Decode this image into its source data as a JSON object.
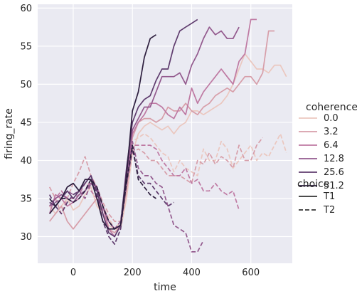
{
  "chart_data": {
    "type": "line",
    "title": "",
    "xlabel": "time",
    "ylabel": "firing_rate",
    "xlim": [
      -120,
      740
    ],
    "ylim": [
      26.5,
      60.5
    ],
    "xticks": [
      0,
      200,
      400,
      600
    ],
    "yticks": [
      30,
      35,
      40,
      45,
      50,
      55,
      60
    ],
    "grid": true,
    "background": "#eaeaf2",
    "legend": {
      "placement": "right",
      "hue_title": "coherence",
      "hue_entries": [
        "0.0",
        "3.2",
        "6.4",
        "12.8",
        "25.6",
        "51.2"
      ],
      "style_title": "choice",
      "style_entries": [
        "T1",
        "T2"
      ]
    },
    "series": [
      {
        "coherence": "0.0",
        "choice": "T1",
        "color": "#ebc7bf",
        "x": [
          -80,
          -60,
          -40,
          -20,
          0,
          20,
          40,
          60,
          80,
          100,
          120,
          140,
          160,
          180,
          200,
          220,
          240,
          260,
          280,
          300,
          320,
          340,
          360,
          380,
          400,
          420,
          440,
          460,
          480,
          500,
          520,
          540,
          560,
          580,
          600,
          620,
          640,
          660,
          680,
          700,
          720
        ],
        "y": [
          34.0,
          33.0,
          34.0,
          35.0,
          33.5,
          34.0,
          35.5,
          36.5,
          34.0,
          33.0,
          31.5,
          31.0,
          31.0,
          35.0,
          41.0,
          43.5,
          44.5,
          45.0,
          44.5,
          44.0,
          44.5,
          43.5,
          44.5,
          45.0,
          46.5,
          46.5,
          46.0,
          46.5,
          47.0,
          47.5,
          48.5,
          50.0,
          52.0,
          54.0,
          53.0,
          52.0,
          52.0,
          51.5,
          52.5,
          52.5,
          51.0
        ]
      },
      {
        "coherence": "0.0",
        "choice": "T2",
        "color": "#ebc7bf",
        "x": [
          -80,
          -60,
          -40,
          -20,
          0,
          20,
          40,
          60,
          80,
          100,
          120,
          140,
          160,
          180,
          200,
          220,
          240,
          260,
          280,
          300,
          320,
          340,
          360,
          380,
          400,
          420,
          440,
          460,
          480,
          500,
          520,
          540,
          560,
          580,
          600,
          620,
          640,
          660,
          680,
          700,
          720
        ],
        "y": [
          34.0,
          35.0,
          35.0,
          36.0,
          35.0,
          36.0,
          37.0,
          37.0,
          36.0,
          34.0,
          32.5,
          31.0,
          32.0,
          37.0,
          42.5,
          43.0,
          43.5,
          43.0,
          42.0,
          41.0,
          40.5,
          38.5,
          40.0,
          39.0,
          38.5,
          38.0,
          41.5,
          40.0,
          40.0,
          42.5,
          41.5,
          39.0,
          40.0,
          41.0,
          42.0,
          40.0,
          41.0,
          40.5,
          42.0,
          43.5,
          41.0
        ]
      },
      {
        "coherence": "3.2",
        "choice": "T1",
        "color": "#d79ea9",
        "x": [
          -80,
          -60,
          -40,
          -20,
          0,
          20,
          40,
          60,
          80,
          100,
          120,
          140,
          160,
          180,
          200,
          220,
          240,
          260,
          280,
          300,
          320,
          340,
          360,
          380,
          400,
          420,
          440,
          460,
          480,
          500,
          520,
          540,
          560,
          580,
          600,
          620,
          640,
          660,
          680
        ],
        "y": [
          32.0,
          33.0,
          34.0,
          32.0,
          31.0,
          32.0,
          33.0,
          34.0,
          35.0,
          33.0,
          31.0,
          30.5,
          31.5,
          36.0,
          43.0,
          45.0,
          45.5,
          45.5,
          45.0,
          45.5,
          47.0,
          46.5,
          46.5,
          47.5,
          46.5,
          46.0,
          47.0,
          47.5,
          48.5,
          49.0,
          49.5,
          49.0,
          50.0,
          51.0,
          51.0,
          50.0,
          51.5,
          57.0,
          57.0
        ]
      },
      {
        "coherence": "3.2",
        "choice": "T2",
        "color": "#d79ea9",
        "x": [
          -80,
          -60,
          -40,
          -20,
          0,
          20,
          40,
          60,
          80,
          100,
          120,
          140,
          160,
          180,
          200,
          220,
          240,
          260,
          280,
          300,
          320,
          340,
          360,
          380,
          400,
          420,
          440,
          460,
          480,
          500,
          520,
          540,
          560,
          580,
          600,
          620,
          640
        ],
        "y": [
          36.5,
          35.0,
          33.0,
          35.0,
          37.0,
          38.5,
          40.5,
          38.0,
          36.5,
          34.5,
          33.0,
          32.0,
          32.0,
          36.0,
          41.0,
          41.5,
          41.0,
          40.0,
          40.0,
          39.0,
          38.0,
          38.0,
          38.0,
          37.5,
          37.0,
          40.0,
          39.5,
          41.0,
          39.5,
          40.5,
          40.0,
          39.0,
          42.0,
          40.0,
          40.0,
          42.0,
          43.0
        ]
      },
      {
        "coherence": "6.4",
        "choice": "T1",
        "color": "#bf7aa3",
        "x": [
          -80,
          -60,
          -40,
          -20,
          0,
          20,
          40,
          60,
          80,
          100,
          120,
          140,
          160,
          180,
          200,
          220,
          240,
          260,
          280,
          300,
          320,
          340,
          360,
          380,
          400,
          420,
          440,
          460,
          480,
          500,
          520,
          540,
          560,
          580,
          600,
          620
        ],
        "y": [
          33.0,
          35.5,
          35.0,
          34.0,
          34.5,
          35.0,
          36.0,
          37.5,
          36.5,
          34.0,
          31.0,
          30.0,
          31.5,
          37.5,
          43.5,
          45.0,
          46.0,
          47.5,
          47.5,
          47.0,
          46.0,
          45.5,
          47.0,
          46.0,
          49.5,
          47.5,
          49.0,
          50.0,
          51.0,
          52.0,
          51.0,
          50.0,
          53.0,
          54.0,
          58.5,
          58.5
        ]
      },
      {
        "coherence": "6.4",
        "choice": "T2",
        "color": "#bf7aa3",
        "x": [
          -80,
          -60,
          -40,
          -20,
          0,
          20,
          40,
          60,
          80,
          100,
          120,
          140,
          160,
          180,
          200,
          220,
          240,
          260,
          280,
          300,
          320,
          340,
          360,
          380,
          400,
          420,
          440,
          460,
          480,
          500,
          520,
          540,
          560
        ],
        "y": [
          34.0,
          35.0,
          36.0,
          35.0,
          35.0,
          35.5,
          37.0,
          36.0,
          35.0,
          33.5,
          32.0,
          31.0,
          32.0,
          37.0,
          42.0,
          42.0,
          42.0,
          42.0,
          41.5,
          40.0,
          39.0,
          38.0,
          38.0,
          39.0,
          37.0,
          37.5,
          36.0,
          36.0,
          37.0,
          36.0,
          35.5,
          36.0,
          33.5
        ]
      },
      {
        "coherence": "12.8",
        "choice": "T1",
        "color": "#935a8e",
        "x": [
          -80,
          -60,
          -40,
          -20,
          0,
          20,
          40,
          60,
          80,
          100,
          120,
          140,
          160,
          180,
          200,
          220,
          240,
          260,
          280,
          300,
          320,
          340,
          360,
          380,
          400,
          420,
          440,
          460,
          480,
          500,
          520,
          540,
          560
        ],
        "y": [
          34.0,
          35.0,
          35.5,
          35.0,
          34.5,
          35.5,
          36.0,
          37.0,
          36.5,
          34.0,
          32.0,
          31.0,
          31.5,
          38.0,
          44.0,
          45.5,
          47.0,
          47.0,
          49.0,
          51.0,
          51.0,
          51.0,
          51.5,
          50.0,
          52.5,
          54.0,
          56.0,
          57.5,
          56.5,
          57.0,
          56.0,
          56.0,
          57.5
        ]
      },
      {
        "coherence": "12.8",
        "choice": "T2",
        "color": "#935a8e",
        "x": [
          -80,
          -60,
          -40,
          -20,
          0,
          20,
          40,
          60,
          80,
          100,
          120,
          140,
          160,
          180,
          200,
          220,
          240,
          260,
          280,
          300,
          320,
          340,
          360,
          380,
          400,
          420,
          440
        ],
        "y": [
          34.0,
          34.5,
          35.0,
          36.0,
          35.5,
          36.0,
          35.0,
          37.0,
          36.0,
          34.0,
          32.0,
          31.0,
          32.0,
          38.0,
          42.5,
          39.0,
          38.0,
          38.0,
          37.0,
          36.5,
          34.0,
          31.5,
          31.0,
          30.5,
          28.0,
          28.0,
          29.5
        ]
      },
      {
        "coherence": "25.6",
        "choice": "T1",
        "color": "#5f3c6e",
        "x": [
          -80,
          -60,
          -40,
          -20,
          0,
          20,
          40,
          60,
          80,
          100,
          120,
          140,
          160,
          180,
          200,
          220,
          240,
          260,
          280,
          300,
          320,
          340,
          360,
          380,
          400,
          420
        ],
        "y": [
          34.5,
          34.0,
          35.0,
          36.0,
          35.0,
          36.0,
          37.0,
          38.0,
          36.0,
          33.0,
          30.5,
          30.0,
          31.5,
          39.0,
          45.0,
          47.0,
          48.0,
          48.5,
          50.5,
          52.0,
          52.0,
          55.0,
          57.0,
          57.5,
          58.0,
          58.5
        ]
      },
      {
        "coherence": "25.6",
        "choice": "T2",
        "color": "#5f3c6e",
        "x": [
          -80,
          -60,
          -40,
          -20,
          0,
          20,
          40,
          60,
          80,
          100,
          120,
          140,
          160,
          180,
          200,
          220,
          240,
          260,
          280,
          300,
          320,
          340
        ],
        "y": [
          35.5,
          34.0,
          33.0,
          34.5,
          35.5,
          36.0,
          37.0,
          38.0,
          35.5,
          32.0,
          30.0,
          29.0,
          31.0,
          37.0,
          41.5,
          38.0,
          37.0,
          37.0,
          36.0,
          35.0,
          34.0,
          34.5
        ]
      },
      {
        "coherence": "51.2",
        "choice": "T1",
        "color": "#2d1e3e",
        "x": [
          -80,
          -60,
          -40,
          -20,
          0,
          20,
          40,
          60,
          80,
          100,
          120,
          140,
          160,
          180,
          200,
          220,
          240,
          260,
          280
        ],
        "y": [
          33.0,
          34.0,
          35.0,
          36.5,
          37.0,
          36.0,
          37.5,
          37.5,
          35.0,
          32.0,
          31.0,
          31.0,
          31.5,
          38.0,
          46.5,
          49.0,
          53.5,
          56.0,
          56.5
        ]
      },
      {
        "coherence": "51.2",
        "choice": "T2",
        "color": "#2d1e3e",
        "x": [
          -80,
          -60,
          -40,
          -20,
          0,
          20,
          40,
          60,
          80,
          100,
          120,
          140,
          160,
          180,
          200,
          220,
          240,
          260,
          280
        ],
        "y": [
          35.0,
          34.0,
          35.0,
          35.0,
          34.5,
          35.0,
          36.0,
          37.5,
          36.5,
          34.0,
          32.0,
          31.0,
          31.5,
          37.0,
          42.0,
          37.5,
          36.5,
          35.5,
          35.0
        ]
      }
    ]
  }
}
